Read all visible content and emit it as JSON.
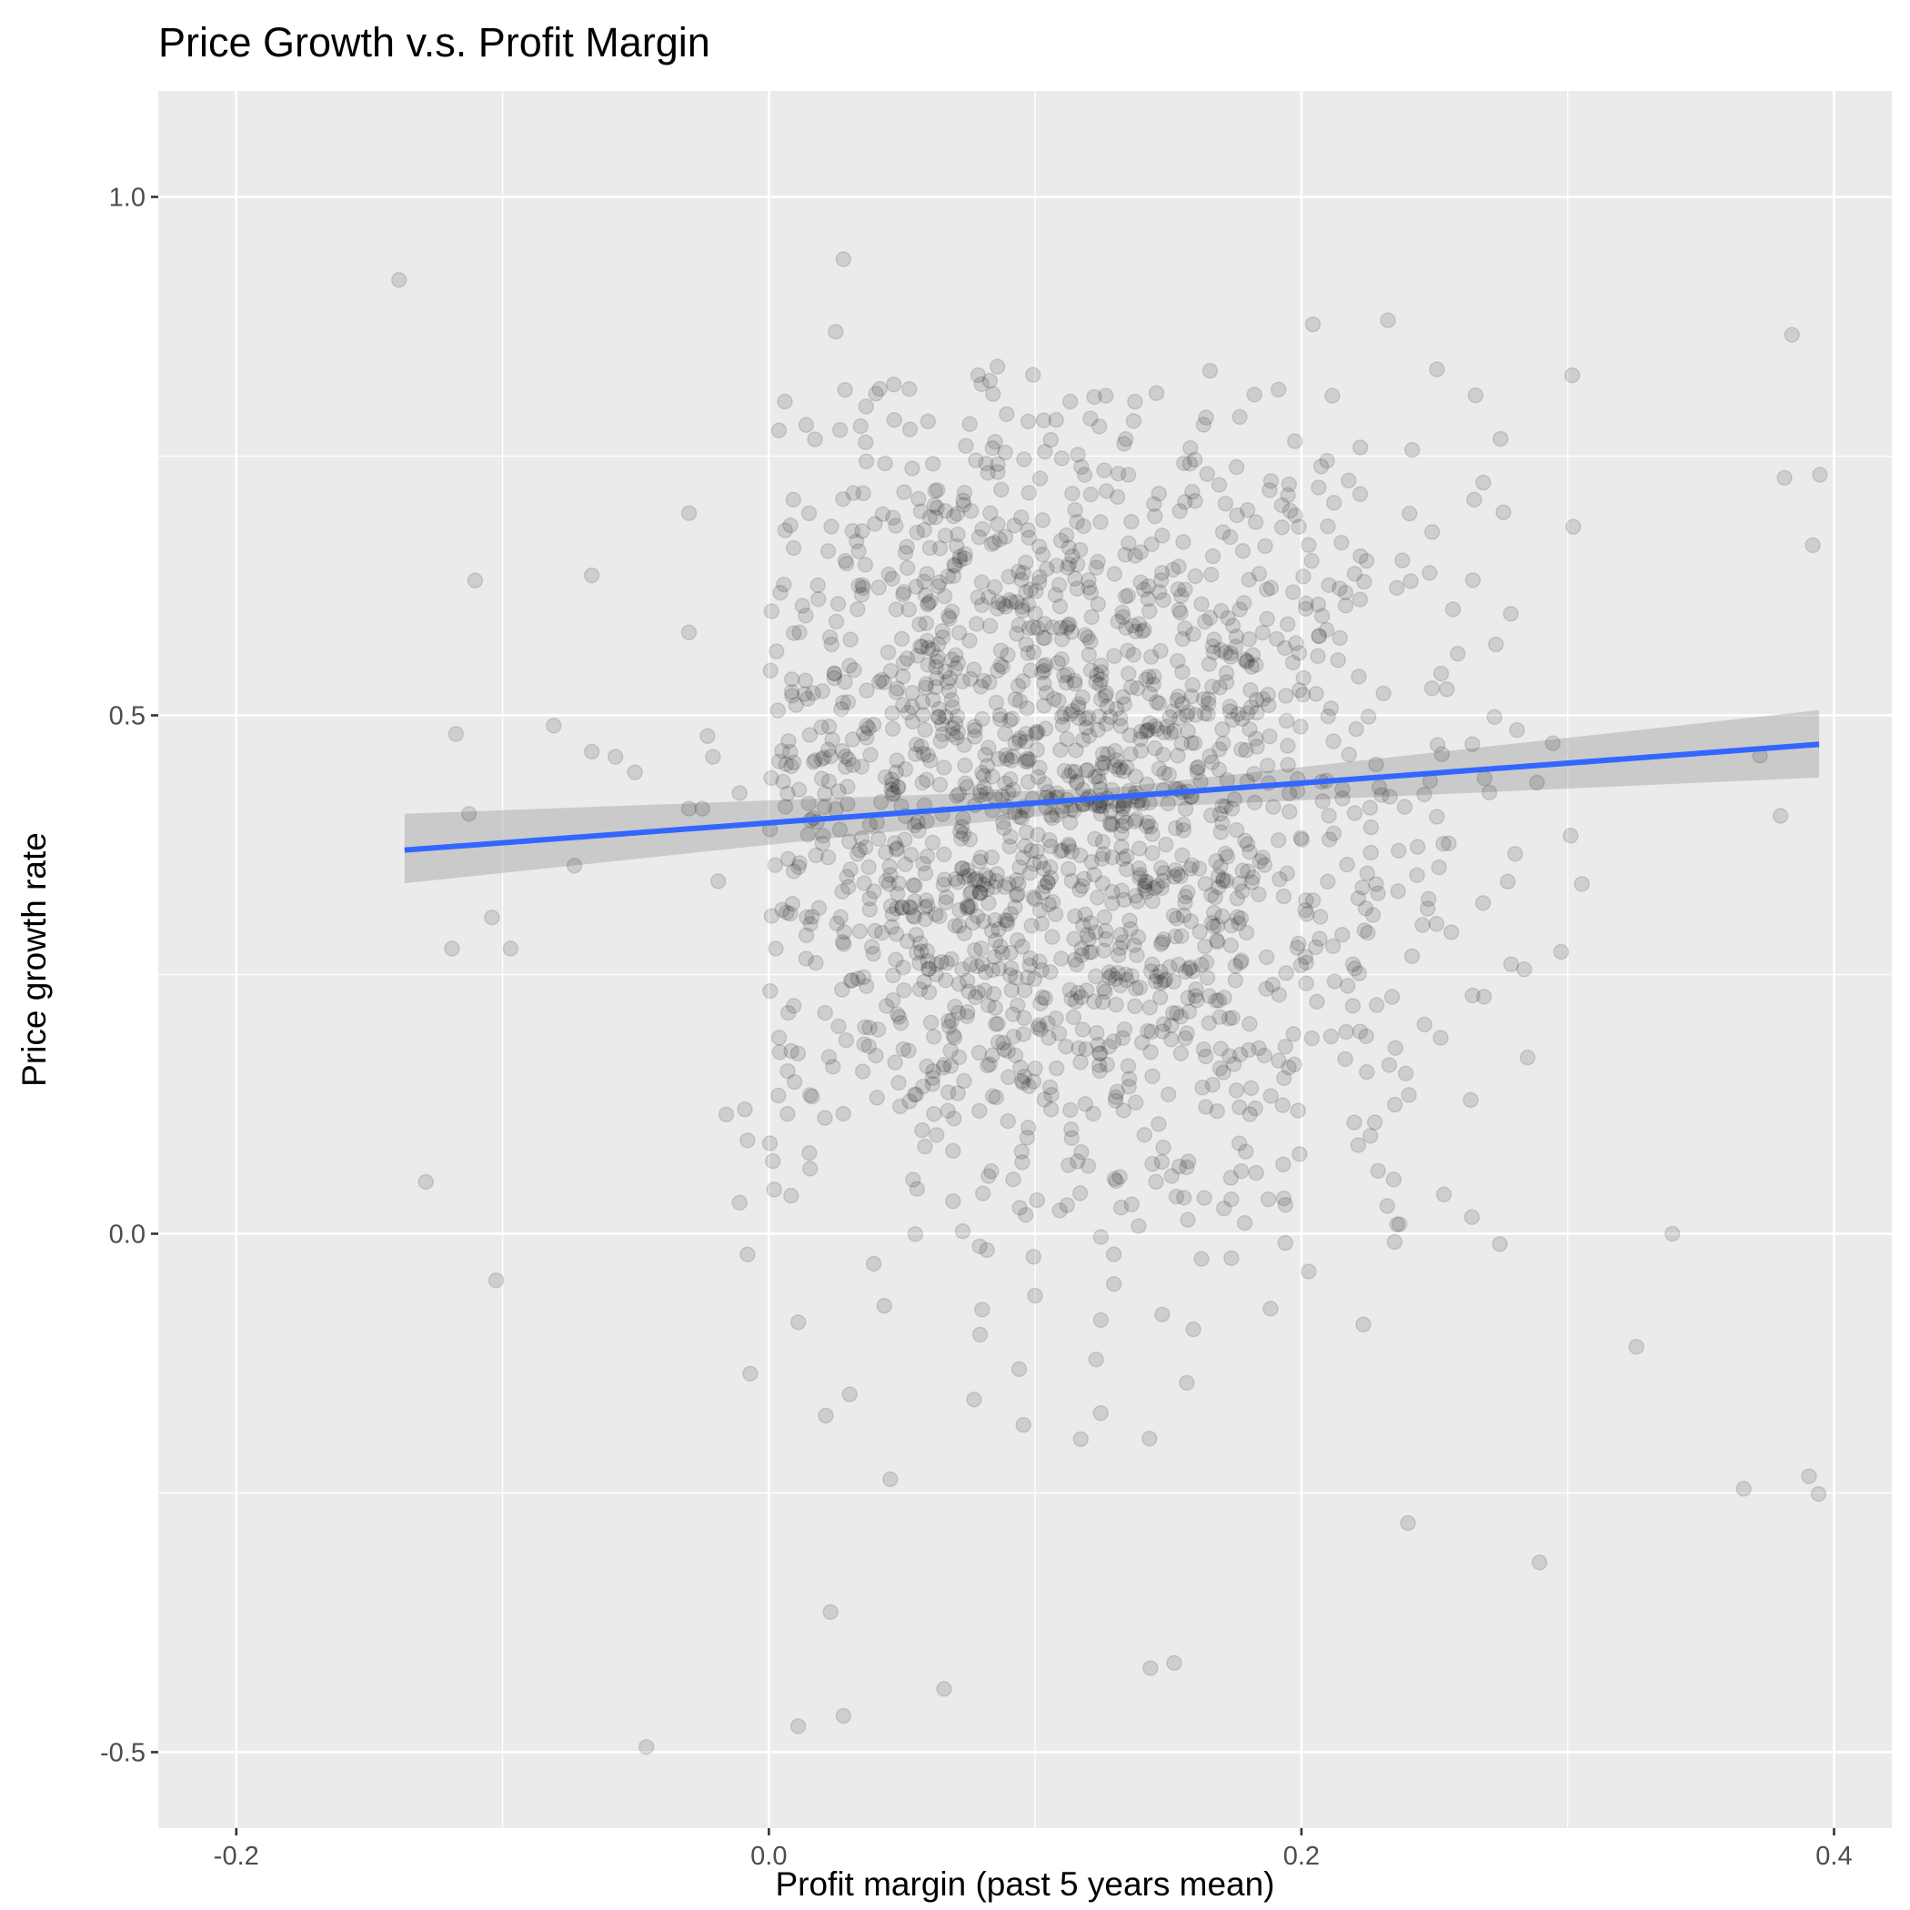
{
  "chart_data": {
    "type": "scatter",
    "title": "Price Growth v.s. Profit Margin",
    "xlabel": "Profit margin (past 5 years mean)",
    "ylabel": "Price growth rate",
    "xlim": [
      -0.2293,
      0.4217
    ],
    "ylim": [
      -0.5733,
      1.1022
    ],
    "x_ticks": [
      -0.2,
      0.0,
      0.2,
      0.4
    ],
    "x_tick_labels": [
      "-0.2",
      "0.0",
      "0.2",
      "0.4"
    ],
    "y_ticks": [
      -0.5,
      0.0,
      0.5,
      1.0
    ],
    "y_tick_labels": [
      "-0.5",
      "0.0",
      "0.5",
      "1.0"
    ],
    "grid": true,
    "legend": "none",
    "colors": {
      "panel_background": "#EBEBEB",
      "grid": "#FFFFFF",
      "point": "#000000",
      "point_opacity": 0.12,
      "fit_line": "#3366FF",
      "confidence_band": "#999999"
    },
    "fit_line": {
      "method": "lm",
      "x": [
        -0.1368,
        0.3944
      ],
      "y": [
        0.37,
        0.472
      ],
      "confidence_band": {
        "x": [
          -0.1368,
          0.1288,
          0.3944
        ],
        "upper": [
          0.405,
          0.43,
          0.505
        ],
        "lower": [
          0.338,
          0.41,
          0.44
        ]
      }
    },
    "outlier_points": [
      {
        "x": -0.1389,
        "y": 0.92
      },
      {
        "x": -0.1288,
        "y": 0.05
      },
      {
        "x": -0.119,
        "y": 0.275
      },
      {
        "x": -0.1175,
        "y": 0.482
      },
      {
        "x": -0.1103,
        "y": 0.63
      },
      {
        "x": -0.1126,
        "y": 0.405
      },
      {
        "x": -0.104,
        "y": 0.305
      },
      {
        "x": -0.1024,
        "y": -0.045
      },
      {
        "x": -0.097,
        "y": 0.275
      },
      {
        "x": -0.0808,
        "y": 0.49
      },
      {
        "x": -0.073,
        "y": 0.355
      },
      {
        "x": -0.0665,
        "y": 0.635
      },
      {
        "x": -0.0665,
        "y": 0.465
      },
      {
        "x": -0.0576,
        "y": 0.46
      },
      {
        "x": -0.0503,
        "y": 0.445
      },
      {
        "x": -0.046,
        "y": -0.495
      },
      {
        "x": -0.03,
        "y": 0.695
      },
      {
        "x": -0.03,
        "y": 0.58
      },
      {
        "x": -0.03,
        "y": 0.41
      },
      {
        "x": -0.025,
        "y": 0.41
      },
      {
        "x": -0.023,
        "y": 0.48
      },
      {
        "x": -0.021,
        "y": 0.46
      },
      {
        "x": -0.019,
        "y": 0.34
      },
      {
        "x": -0.016,
        "y": 0.115
      },
      {
        "x": -0.011,
        "y": 0.03
      },
      {
        "x": -0.011,
        "y": 0.425
      },
      {
        "x": -0.009,
        "y": 0.12
      },
      {
        "x": -0.008,
        "y": -0.02
      },
      {
        "x": -0.007,
        "y": -0.135
      },
      {
        "x": -0.008,
        "y": 0.09
      },
      {
        "x": 0.011,
        "y": -0.475
      },
      {
        "x": 0.028,
        "y": -0.465
      },
      {
        "x": 0.028,
        "y": 0.94
      },
      {
        "x": 0.0251,
        "y": 0.87
      },
      {
        "x": 0.0658,
        "y": -0.439
      },
      {
        "x": 0.1522,
        "y": -0.414
      },
      {
        "x": 0.1433,
        "y": -0.419
      },
      {
        "x": 0.3842,
        "y": 0.867
      },
      {
        "x": 0.3814,
        "y": 0.729
      },
      {
        "x": 0.3947,
        "y": 0.732
      },
      {
        "x": 0.3906,
        "y": -0.234
      },
      {
        "x": 0.3942,
        "y": -0.251
      },
      {
        "x": 0.3661,
        "y": -0.246
      },
      {
        "x": 0.2894,
        "y": -0.317
      },
      {
        "x": 0.24,
        "y": -0.279
      },
      {
        "x": 0.3258,
        "y": -0.109
      },
      {
        "x": 0.3393,
        "y": 0.0
      },
      {
        "x": 0.2745,
        "y": -0.01
      },
      {
        "x": 0.264,
        "y": 0.016
      },
      {
        "x": 0.2325,
        "y": 0.881
      },
      {
        "x": 0.2043,
        "y": 0.877
      },
      {
        "x": 0.3017,
        "y": 0.828
      },
      {
        "x": 0.392,
        "y": 0.664
      },
      {
        "x": 0.3722,
        "y": 0.461
      },
      {
        "x": 0.3799,
        "y": 0.403
      }
    ],
    "cluster": {
      "count": 1800,
      "x_center": 0.11,
      "x_spread": 0.065,
      "x_range": [
        0.0,
        0.31
      ],
      "y_center": 0.42,
      "y_spread": 0.21,
      "y_range": [
        -0.37,
        0.84
      ],
      "seed": 20240601
    }
  }
}
